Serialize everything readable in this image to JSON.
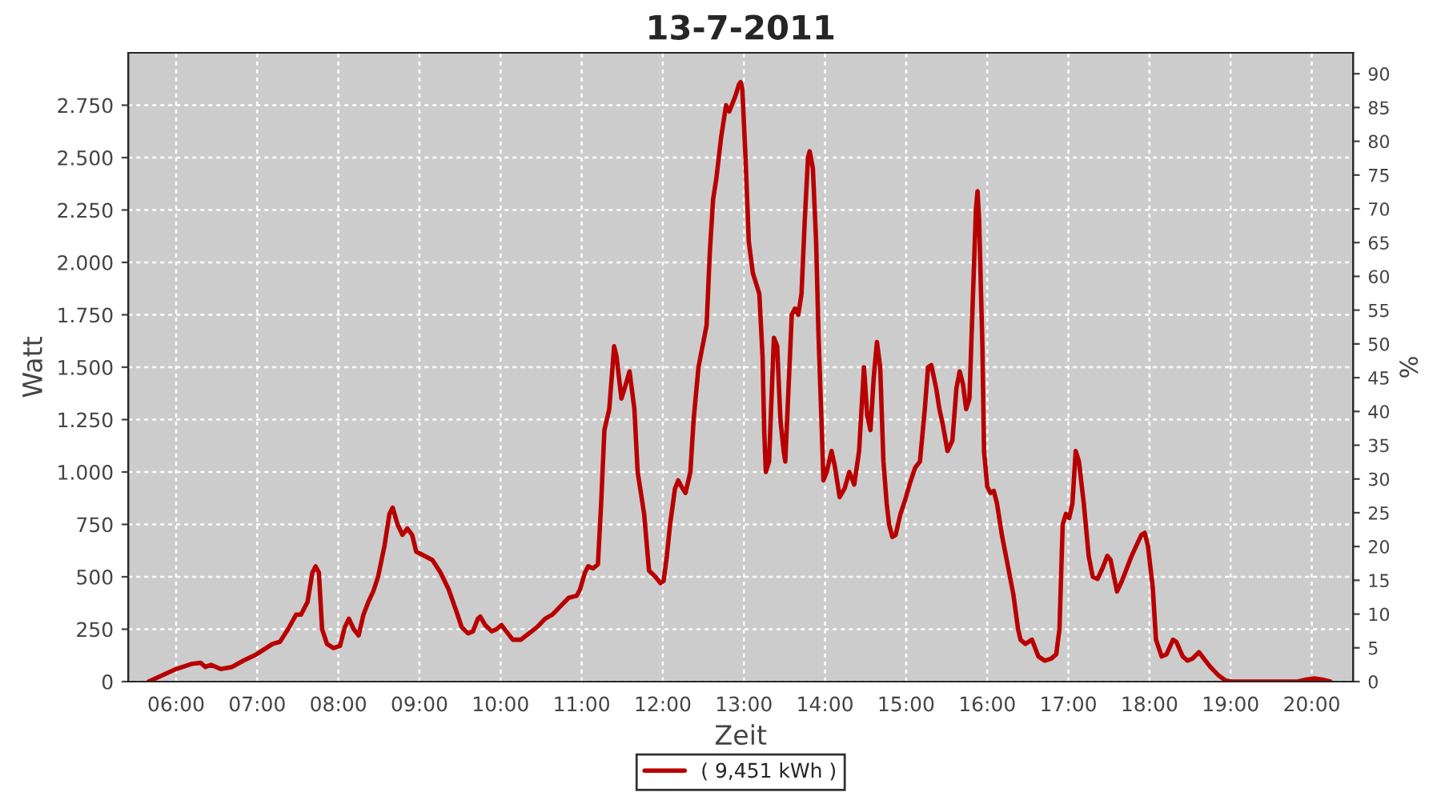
{
  "chart_data": {
    "type": "line",
    "title": "13-7-2011",
    "xlabel": "Zeit",
    "ylabel": "Watt",
    "y2label": "%",
    "x": [
      5.66,
      5.8,
      6.0,
      6.2,
      6.3,
      6.36,
      6.43,
      6.55,
      6.69,
      6.83,
      6.99,
      7.19,
      7.28,
      7.38,
      7.48,
      7.54,
      7.62,
      7.68,
      7.72,
      7.76,
      7.8,
      7.86,
      7.94,
      8.02,
      8.08,
      8.13,
      8.19,
      8.25,
      8.31,
      8.37,
      8.43,
      8.49,
      8.57,
      8.63,
      8.67,
      8.73,
      8.79,
      8.85,
      8.91,
      8.96,
      9.06,
      9.16,
      9.26,
      9.36,
      9.46,
      9.52,
      9.6,
      9.66,
      9.72,
      9.75,
      9.81,
      9.89,
      9.95,
      10.01,
      10.07,
      10.15,
      10.25,
      10.35,
      10.45,
      10.55,
      10.64,
      10.74,
      10.84,
      10.94,
      10.98,
      11.04,
      11.08,
      11.14,
      11.2,
      11.24,
      11.28,
      11.34,
      11.4,
      11.43,
      11.49,
      11.53,
      11.59,
      11.65,
      11.69,
      11.77,
      11.83,
      11.91,
      11.97,
      12.01,
      12.05,
      12.09,
      12.15,
      12.19,
      12.23,
      12.28,
      12.34,
      12.38,
      12.44,
      12.5,
      12.54,
      12.58,
      12.62,
      12.66,
      12.72,
      12.78,
      12.82,
      12.86,
      12.9,
      12.94,
      12.96,
      12.98,
      13.02,
      13.06,
      13.11,
      13.15,
      13.19,
      13.23,
      13.25,
      13.27,
      13.31,
      13.35,
      13.37,
      13.41,
      13.45,
      13.49,
      13.51,
      13.55,
      13.59,
      13.63,
      13.67,
      13.71,
      13.75,
      13.79,
      13.81,
      13.85,
      13.89,
      13.92,
      13.96,
      13.98,
      14.02,
      14.08,
      14.12,
      14.18,
      14.24,
      14.3,
      14.36,
      14.42,
      14.48,
      14.52,
      14.56,
      14.6,
      14.64,
      14.68,
      14.72,
      14.76,
      14.79,
      14.83,
      14.87,
      14.93,
      14.99,
      15.05,
      15.11,
      15.17,
      15.23,
      15.27,
      15.31,
      15.37,
      15.41,
      15.45,
      15.51,
      15.57,
      15.62,
      15.66,
      15.7,
      15.74,
      15.78,
      15.82,
      15.86,
      15.88,
      15.9,
      15.94,
      15.96,
      16.0,
      16.04,
      16.08,
      16.12,
      16.18,
      16.24,
      16.32,
      16.38,
      16.41,
      16.47,
      16.55,
      16.63,
      16.71,
      16.79,
      16.85,
      16.89,
      16.93,
      16.97,
      17.01,
      17.05,
      17.09,
      17.13,
      17.19,
      17.25,
      17.3,
      17.36,
      17.42,
      17.48,
      17.52,
      17.6,
      17.66,
      17.72,
      17.78,
      17.84,
      17.9,
      17.94,
      17.98,
      18.04,
      18.08,
      18.15,
      18.21,
      18.29,
      18.33,
      18.41,
      18.47,
      18.53,
      18.61,
      18.67,
      18.75,
      18.85,
      18.94,
      19.02,
      19.14,
      19.83,
      19.93,
      20.03,
      20.13,
      20.23
    ],
    "series": [
      {
        "name": "( 9,451 kWh )",
        "color": "#b80000",
        "values": [
          0,
          25,
          60,
          85,
          90,
          70,
          80,
          60,
          70,
          100,
          130,
          180,
          190,
          250,
          320,
          320,
          380,
          520,
          550,
          520,
          250,
          180,
          160,
          170,
          260,
          300,
          250,
          220,
          320,
          380,
          430,
          500,
          650,
          800,
          830,
          750,
          700,
          730,
          700,
          620,
          600,
          580,
          520,
          440,
          330,
          260,
          230,
          240,
          300,
          310,
          270,
          240,
          250,
          270,
          240,
          200,
          200,
          230,
          260,
          300,
          320,
          360,
          400,
          410,
          440,
          520,
          550,
          540,
          560,
          850,
          1200,
          1300,
          1600,
          1550,
          1350,
          1400,
          1480,
          1300,
          1000,
          800,
          530,
          500,
          470,
          480,
          600,
          750,
          920,
          960,
          930,
          900,
          1000,
          1250,
          1500,
          1620,
          1700,
          2050,
          2300,
          2400,
          2600,
          2750,
          2720,
          2760,
          2800,
          2850,
          2860,
          2830,
          2500,
          2100,
          1950,
          1900,
          1850,
          1550,
          1200,
          1000,
          1050,
          1450,
          1640,
          1600,
          1250,
          1100,
          1050,
          1400,
          1750,
          1780,
          1750,
          1850,
          2200,
          2500,
          2530,
          2450,
          2100,
          1650,
          1200,
          960,
          1000,
          1100,
          1030,
          880,
          920,
          1000,
          940,
          1100,
          1500,
          1270,
          1200,
          1450,
          1620,
          1500,
          1050,
          850,
          750,
          690,
          700,
          800,
          870,
          950,
          1020,
          1050,
          1300,
          1500,
          1510,
          1400,
          1300,
          1230,
          1100,
          1150,
          1400,
          1480,
          1420,
          1300,
          1350,
          1800,
          2250,
          2340,
          2200,
          1600,
          1100,
          930,
          900,
          910,
          850,
          700,
          580,
          420,
          250,
          200,
          180,
          200,
          120,
          100,
          110,
          130,
          250,
          750,
          800,
          780,
          850,
          1100,
          1050,
          850,
          600,
          500,
          490,
          540,
          600,
          580,
          430,
          480,
          540,
          600,
          650,
          700,
          710,
          650,
          450,
          200,
          120,
          130,
          200,
          190,
          120,
          100,
          110,
          140,
          110,
          70,
          30,
          5,
          0,
          0,
          0,
          10,
          15,
          10,
          0
        ]
      }
    ],
    "xlim": [
      5.41,
      20.51
    ],
    "xticks": [
      {
        "value": 6,
        "label": "06:00"
      },
      {
        "value": 7,
        "label": "07:00"
      },
      {
        "value": 8,
        "label": "08:00"
      },
      {
        "value": 9,
        "label": "09:00"
      },
      {
        "value": 10,
        "label": "10:00"
      },
      {
        "value": 11,
        "label": "11:00"
      },
      {
        "value": 12,
        "label": "12:00"
      },
      {
        "value": 13,
        "label": "13:00"
      },
      {
        "value": 14,
        "label": "14:00"
      },
      {
        "value": 15,
        "label": "15:00"
      },
      {
        "value": 16,
        "label": "16:00"
      },
      {
        "value": 17,
        "label": "17:00"
      },
      {
        "value": 18,
        "label": "18:00"
      },
      {
        "value": 19,
        "label": "19:00"
      },
      {
        "value": 20,
        "label": "20:00"
      }
    ],
    "ylim": [
      0,
      3000
    ],
    "yticks": [
      0,
      250,
      500,
      750,
      {
        "value": 1000,
        "label": "1.000"
      },
      {
        "value": 1250,
        "label": "1.250"
      },
      {
        "value": 1500,
        "label": "1.500"
      },
      {
        "value": 1750,
        "label": "1.750"
      },
      {
        "value": 2000,
        "label": "2.000"
      },
      {
        "value": 2250,
        "label": "2.250"
      },
      {
        "value": 2500,
        "label": "2.500"
      },
      {
        "value": 2750,
        "label": "2.750"
      }
    ],
    "y2lim": [
      0,
      93.1
    ],
    "y2ticks": [
      0,
      5,
      10,
      15,
      20,
      25,
      30,
      35,
      40,
      45,
      50,
      55,
      60,
      65,
      70,
      75,
      80,
      85,
      90
    ],
    "grid": true,
    "legend": "bottom",
    "marker": "none",
    "line_style": "solid"
  }
}
